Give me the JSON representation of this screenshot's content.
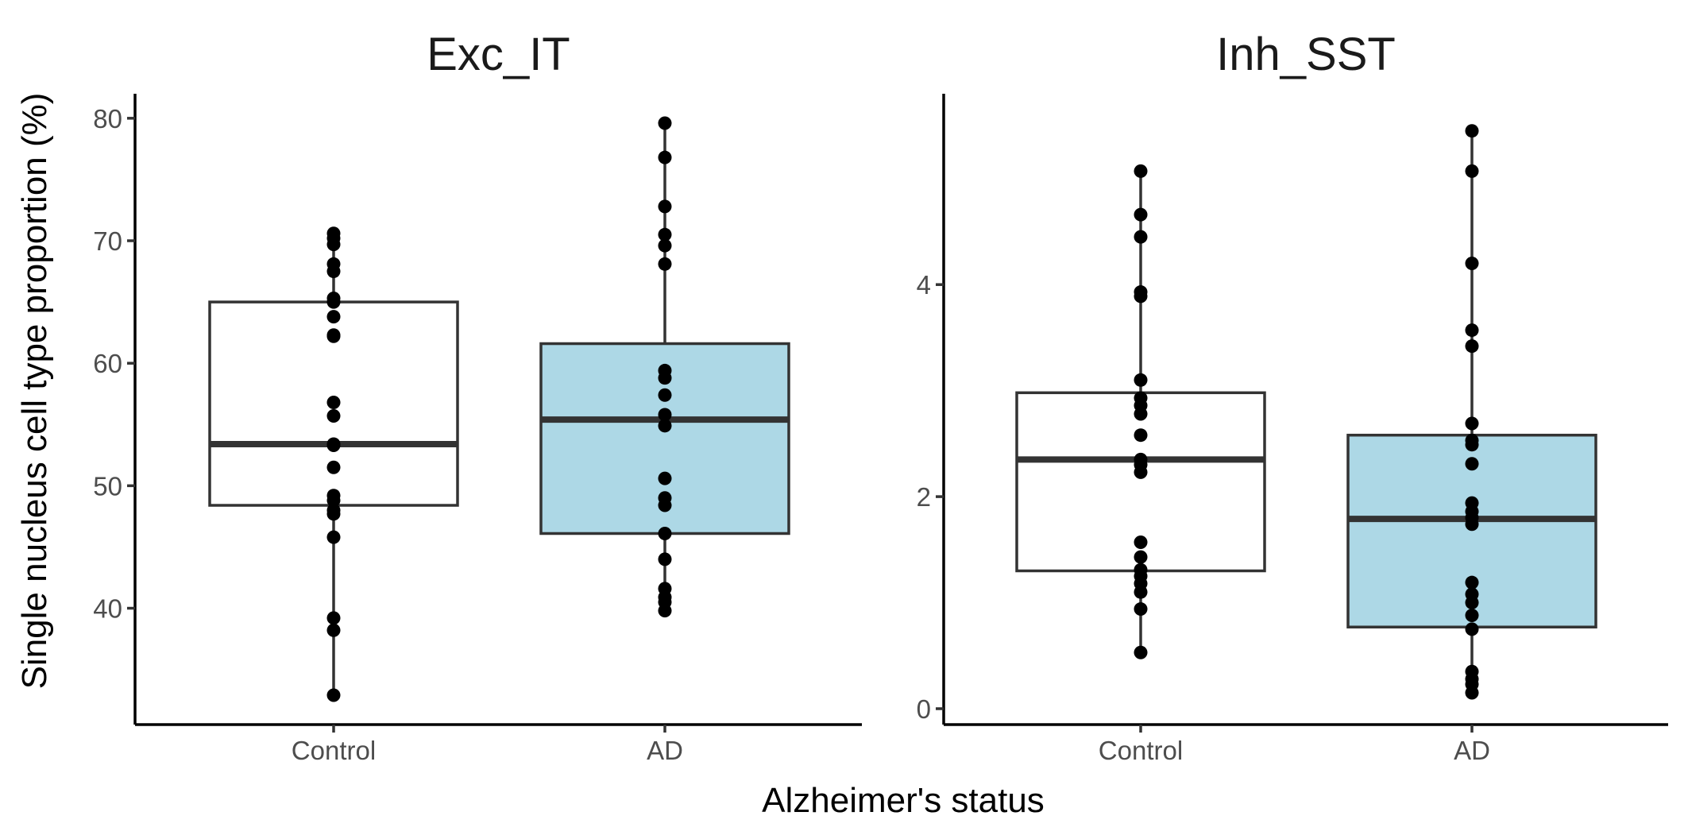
{
  "chart_data": [
    {
      "type": "box",
      "title": "Exc_IT",
      "categories": [
        "Control",
        "AD"
      ],
      "ylim": [
        30.5,
        82
      ],
      "yticks": [
        40,
        50,
        60,
        70,
        80
      ],
      "series": [
        {
          "category": "Control",
          "fill": "#ffffff",
          "whisker_low": 32.9,
          "q1": 48.4,
          "median": 53.4,
          "q3": 65.0,
          "whisker_high": 70.6,
          "points": [
            70.6,
            70.2,
            69.7,
            68.1,
            67.5,
            65.3,
            65.0,
            63.8,
            62.3,
            62.2,
            56.8,
            55.7,
            53.4,
            53.3,
            51.5,
            49.2,
            48.8,
            48.0,
            47.7,
            45.8,
            39.2,
            38.2,
            32.9
          ]
        },
        {
          "category": "AD",
          "fill": "#add8e6",
          "whisker_low": 39.8,
          "q1": 46.1,
          "median": 55.4,
          "q3": 61.6,
          "whisker_high": 79.6,
          "points": [
            79.6,
            76.8,
            72.8,
            70.5,
            69.6,
            68.1,
            59.4,
            58.8,
            57.4,
            55.8,
            54.9,
            50.6,
            49.0,
            48.4,
            46.1,
            44.0,
            41.6,
            40.9,
            40.5,
            39.8
          ]
        }
      ]
    },
    {
      "type": "box",
      "title": "Inh_SST",
      "categories": [
        "Control",
        "AD"
      ],
      "ylim": [
        -0.15,
        5.8
      ],
      "yticks": [
        0,
        2,
        4
      ],
      "series": [
        {
          "category": "Control",
          "fill": "#ffffff",
          "whisker_low": 0.53,
          "q1": 1.3,
          "median": 2.35,
          "q3": 2.98,
          "whisker_high": 5.07,
          "points": [
            5.07,
            4.66,
            4.45,
            3.93,
            3.89,
            3.1,
            2.93,
            2.86,
            2.78,
            2.58,
            2.35,
            2.3,
            2.23,
            1.57,
            1.43,
            1.31,
            1.25,
            1.18,
            1.1,
            0.94,
            0.53
          ]
        },
        {
          "category": "AD",
          "fill": "#add8e6",
          "whisker_low": 0.15,
          "q1": 0.77,
          "median": 1.79,
          "q3": 2.58,
          "whisker_high": 5.45,
          "points": [
            5.45,
            5.07,
            4.2,
            3.57,
            3.42,
            2.69,
            2.53,
            2.49,
            2.31,
            1.94,
            1.86,
            1.8,
            1.74,
            1.19,
            1.08,
            1.0,
            0.88,
            0.75,
            0.35,
            0.28,
            0.23,
            0.15
          ]
        }
      ]
    }
  ],
  "xlabel": "Alzheimer's status",
  "ylabel": "Single nucleus cell type proportion (%)"
}
